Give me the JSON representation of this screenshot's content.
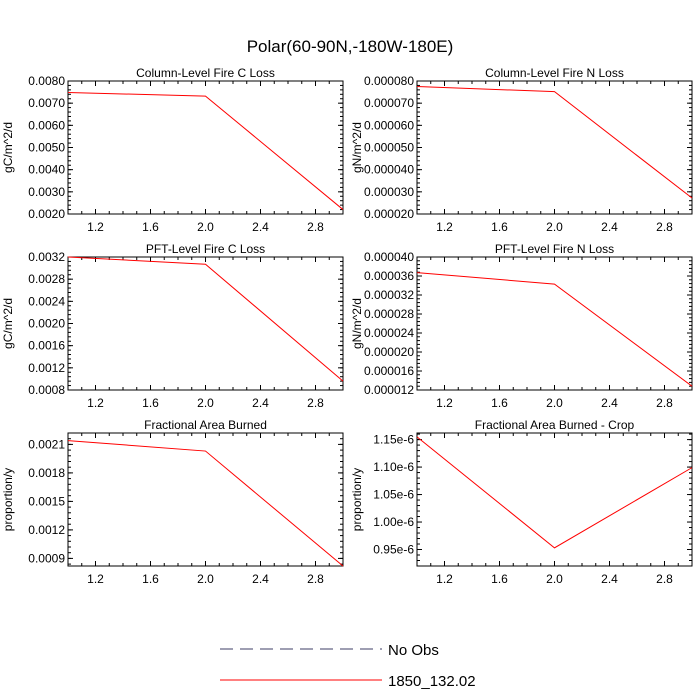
{
  "figure_title": "Polar(60-90N,-180W-180E)",
  "legend": [
    {
      "label": "No Obs",
      "style": "dashed",
      "color": "#3c3c66"
    },
    {
      "label": "1850_132.02",
      "style": "solid",
      "color": "#ff0000"
    }
  ],
  "chart_data": [
    {
      "type": "line",
      "title": "Column-Level Fire C Loss",
      "ylabel": "gC/m^2/d",
      "xlim": [
        1,
        3
      ],
      "ylim": [
        0.002,
        0.008
      ],
      "xticks": [
        1.2,
        1.6,
        2.0,
        2.4,
        2.8
      ],
      "xtick_labels": [
        "1.2",
        "1.6",
        "2.0",
        "2.4",
        "2.8"
      ],
      "yticks": [
        0.002,
        0.003,
        0.004,
        0.005,
        0.006,
        0.007,
        0.008
      ],
      "ytick_labels": [
        "0.0020",
        "0.0030",
        "0.0040",
        "0.0050",
        "0.0060",
        "0.0070",
        "0.0080"
      ],
      "series": [
        {
          "name": "1850_132.02",
          "color": "#ff0000",
          "x": [
            1,
            2,
            3
          ],
          "y": [
            0.00748,
            0.00732,
            0.0022
          ]
        }
      ]
    },
    {
      "type": "line",
      "title": "Column-Level Fire N Loss",
      "ylabel": "gN/m^2/d",
      "xlim": [
        1,
        3
      ],
      "ylim": [
        2e-05,
        8e-05
      ],
      "xticks": [
        1.2,
        1.6,
        2.0,
        2.4,
        2.8
      ],
      "xtick_labels": [
        "1.2",
        "1.6",
        "2.0",
        "2.4",
        "2.8"
      ],
      "yticks": [
        2e-05,
        3e-05,
        4e-05,
        5e-05,
        6e-05,
        7e-05,
        8e-05
      ],
      "ytick_labels": [
        "0.000020",
        "0.000030",
        "0.000040",
        "0.000050",
        "0.000060",
        "0.000070",
        "0.000080"
      ],
      "series": [
        {
          "name": "1850_132.02",
          "color": "#ff0000",
          "x": [
            1,
            2,
            3
          ],
          "y": [
            7.75e-05,
            7.52e-05,
            2.72e-05
          ]
        }
      ]
    },
    {
      "type": "line",
      "title": "PFT-Level Fire C Loss",
      "ylabel": "gC/m^2/d",
      "xlim": [
        1,
        3
      ],
      "ylim": [
        0.0008,
        0.0032
      ],
      "xticks": [
        1.2,
        1.6,
        2.0,
        2.4,
        2.8
      ],
      "xtick_labels": [
        "1.2",
        "1.6",
        "2.0",
        "2.4",
        "2.8"
      ],
      "yticks": [
        0.0008,
        0.0012,
        0.0016,
        0.002,
        0.0024,
        0.0028,
        0.0032
      ],
      "ytick_labels": [
        "0.0008",
        "0.0012",
        "0.0016",
        "0.0020",
        "0.0024",
        "0.0028",
        "0.0032"
      ],
      "series": [
        {
          "name": "1850_132.02",
          "color": "#ff0000",
          "x": [
            1,
            2,
            3
          ],
          "y": [
            0.0032,
            0.00307,
            0.00096
          ]
        }
      ]
    },
    {
      "type": "line",
      "title": "PFT-Level Fire N Loss",
      "ylabel": "gN/m^2/d",
      "xlim": [
        1,
        3
      ],
      "ylim": [
        1.2e-05,
        4e-05
      ],
      "xticks": [
        1.2,
        1.6,
        2.0,
        2.4,
        2.8
      ],
      "xtick_labels": [
        "1.2",
        "1.6",
        "2.0",
        "2.4",
        "2.8"
      ],
      "yticks": [
        1.2e-05,
        1.6e-05,
        2e-05,
        2.4e-05,
        2.8e-05,
        3.2e-05,
        3.6e-05,
        4e-05
      ],
      "ytick_labels": [
        "0.000012",
        "0.000016",
        "0.000020",
        "0.000024",
        "0.000028",
        "0.000032",
        "0.000036",
        "0.000040"
      ],
      "series": [
        {
          "name": "1850_132.02",
          "color": "#ff0000",
          "x": [
            1,
            2,
            3
          ],
          "y": [
            3.67e-05,
            3.43e-05,
            1.28e-05
          ]
        }
      ]
    },
    {
      "type": "line",
      "title": "Fractional Area Burned",
      "ylabel": "proportion/y",
      "xlim": [
        1,
        3
      ],
      "ylim": [
        0.00082,
        0.00222
      ],
      "xticks": [
        1.2,
        1.6,
        2.0,
        2.4,
        2.8
      ],
      "xtick_labels": [
        "1.2",
        "1.6",
        "2.0",
        "2.4",
        "2.8"
      ],
      "yticks": [
        0.0009,
        0.0012,
        0.0015,
        0.0018,
        0.0021
      ],
      "ytick_labels": [
        "0.0009",
        "0.0012",
        "0.0015",
        "0.0018",
        "0.0021"
      ],
      "series": [
        {
          "name": "1850_132.02",
          "color": "#ff0000",
          "x": [
            1,
            2,
            3
          ],
          "y": [
            0.00214,
            0.00203,
            0.00082
          ]
        }
      ]
    },
    {
      "type": "line",
      "title": "Fractional Area Burned - Crop",
      "ylabel": "proportion/y",
      "xlim": [
        1,
        3
      ],
      "ylim": [
        9.2e-07,
        1.162e-06
      ],
      "xticks": [
        1.2,
        1.6,
        2.0,
        2.4,
        2.8
      ],
      "xtick_labels": [
        "1.2",
        "1.6",
        "2.0",
        "2.4",
        "2.8"
      ],
      "yticks": [
        9.5e-07,
        1e-06,
        1.05e-06,
        1.1e-06,
        1.15e-06
      ],
      "ytick_labels": [
        "0.95e-6",
        "1.00e-6",
        "1.05e-6",
        "1.10e-6",
        "1.15e-6"
      ],
      "series": [
        {
          "name": "1850_132.02",
          "color": "#ff0000",
          "x": [
            1,
            2,
            3
          ],
          "y": [
            1.155e-06,
            9.53e-07,
            1.099e-06
          ]
        }
      ]
    }
  ]
}
